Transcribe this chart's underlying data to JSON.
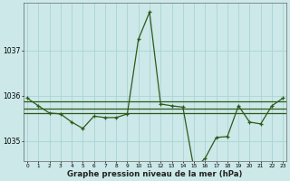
{
  "xlabel": "Graphe pression niveau de la mer (hPa)",
  "background_color": "#cce8e8",
  "line_color": "#2d5a1b",
  "grid_color": "#aad4d4",
  "x": [
    0,
    1,
    2,
    3,
    4,
    5,
    6,
    7,
    8,
    9,
    10,
    11,
    12,
    13,
    14,
    15,
    16,
    17,
    18,
    19,
    20,
    21,
    22,
    23
  ],
  "y_main": [
    1035.95,
    1035.78,
    1035.62,
    1035.6,
    1035.42,
    1035.28,
    1035.55,
    1035.52,
    1035.52,
    1035.6,
    1037.25,
    1037.85,
    1035.82,
    1035.78,
    1035.75,
    1034.38,
    1034.62,
    1035.08,
    1035.1,
    1035.78,
    1035.42,
    1035.38,
    1035.78,
    1035.95
  ],
  "y_hline1": 1035.88,
  "y_hline2": 1035.72,
  "y_hline3": 1035.62,
  "ytick_labels": [
    "1035",
    "1036",
    "1037"
  ],
  "ytick_vals": [
    1035,
    1036,
    1037
  ],
  "ylim": [
    1034.55,
    1038.05
  ],
  "xlim": [
    -0.3,
    23.3
  ],
  "xticks": [
    0,
    1,
    2,
    3,
    4,
    5,
    6,
    7,
    8,
    9,
    10,
    11,
    12,
    13,
    14,
    15,
    16,
    17,
    18,
    19,
    20,
    21,
    22,
    23
  ]
}
